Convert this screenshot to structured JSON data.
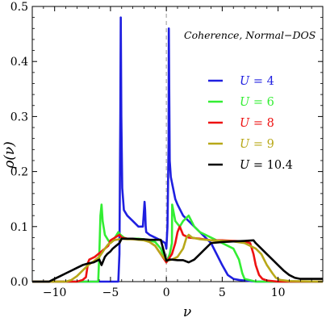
{
  "chart_data": {
    "type": "line",
    "title": "",
    "annotation": "Coherence, Normal−DOS",
    "xlabel": "ν",
    "ylabel": "ρ(ν)",
    "xlim": [
      -12,
      14
    ],
    "ylim": [
      0,
      0.5
    ],
    "x_ticks": [
      -10,
      -5,
      0,
      5,
      10
    ],
    "x_tick_labels": [
      "−10",
      "−5",
      "0",
      "5",
      "10"
    ],
    "y_ticks": [
      0.0,
      0.1,
      0.2,
      0.3,
      0.4,
      0.5
    ],
    "y_tick_labels": [
      "0.0",
      "0.1",
      "0.2",
      "0.3",
      "0.4",
      "0.5"
    ],
    "reference_line": {
      "x": 0,
      "style": "dashed",
      "color": "#aaaaaa"
    },
    "grid": false,
    "legend_position": "right",
    "series": [
      {
        "name": "U =4",
        "color": "#1f1fe0",
        "x": [
          -12,
          -4.3,
          -4.2,
          -4.12,
          -4.08,
          -4.03,
          -3.95,
          -3.8,
          -3.5,
          -3,
          -2.5,
          -2.1,
          -2.0,
          -1.95,
          -1.9,
          -1.85,
          -1.8,
          -1.5,
          -1,
          -0.5,
          -0.1,
          0,
          0.1,
          0.2,
          0.22,
          0.3,
          0.4,
          0.6,
          0.8,
          1,
          1.5,
          2,
          2.5,
          3,
          3.5,
          4,
          4.5,
          5,
          5.5,
          6,
          6.5,
          7,
          8,
          14
        ],
        "y": [
          0,
          0,
          0.05,
          0.3,
          0.48,
          0.3,
          0.17,
          0.13,
          0.12,
          0.11,
          0.1,
          0.1,
          0.13,
          0.145,
          0.13,
          0.1,
          0.09,
          0.085,
          0.08,
          0.075,
          0.07,
          0.06,
          0.1,
          0.25,
          0.46,
          0.22,
          0.19,
          0.17,
          0.15,
          0.14,
          0.12,
          0.11,
          0.1,
          0.09,
          0.08,
          0.07,
          0.05,
          0.03,
          0.012,
          0.005,
          0.003,
          0.002,
          0,
          0
        ]
      },
      {
        "name": "U =6",
        "color": "#33ee33",
        "x": [
          -12,
          -6.1,
          -6.0,
          -5.9,
          -5.8,
          -5.7,
          -5.5,
          -5.2,
          -5.0,
          -4.8,
          -4.6,
          -4.3,
          -4.1,
          -3.8,
          -3.5,
          -3,
          -2.5,
          -2,
          -1.5,
          -1,
          -0.5,
          -0.2,
          0,
          0.3,
          0.5,
          0.52,
          0.8,
          1.2,
          1.5,
          2,
          2.5,
          3,
          4,
          4.5,
          5,
          5.5,
          6,
          6.5,
          6.8,
          7,
          8,
          14
        ],
        "y": [
          0,
          0,
          0.05,
          0.12,
          0.14,
          0.11,
          0.085,
          0.075,
          0.07,
          0.075,
          0.08,
          0.09,
          0.085,
          0.08,
          0.078,
          0.078,
          0.078,
          0.077,
          0.075,
          0.072,
          0.06,
          0.045,
          0.035,
          0.05,
          0.07,
          0.14,
          0.11,
          0.1,
          0.11,
          0.12,
          0.1,
          0.09,
          0.08,
          0.075,
          0.07,
          0.065,
          0.06,
          0.04,
          0.015,
          0.005,
          0,
          0
        ]
      },
      {
        "name": "U =8",
        "color": "#ee1111",
        "x": [
          -12,
          -8.0,
          -7.5,
          -7.2,
          -7.0,
          -6.9,
          -6.7,
          -6.4,
          -6.1,
          -5.8,
          -5.5,
          -5.2,
          -5.0,
          -4.6,
          -4.2,
          -4.0,
          -3.5,
          -3,
          -2.5,
          -2,
          -1.5,
          -1,
          -0.5,
          0,
          0.5,
          0.8,
          1,
          1.2,
          1.5,
          2,
          3,
          4,
          5,
          6,
          7,
          7.5,
          7.8,
          8.0,
          8.3,
          8.6,
          9,
          10,
          14
        ],
        "y": [
          0,
          0,
          0.003,
          0.008,
          0.035,
          0.04,
          0.042,
          0.045,
          0.05,
          0.055,
          0.06,
          0.065,
          0.075,
          0.08,
          0.085,
          0.08,
          0.078,
          0.077,
          0.077,
          0.076,
          0.072,
          0.065,
          0.05,
          0.035,
          0.05,
          0.07,
          0.09,
          0.1,
          0.085,
          0.08,
          0.078,
          0.075,
          0.075,
          0.074,
          0.073,
          0.07,
          0.05,
          0.03,
          0.012,
          0.005,
          0.002,
          0,
          0
        ]
      },
      {
        "name": "U =9",
        "color": "#b8a818",
        "x": [
          -12,
          -9.0,
          -8.5,
          -8.0,
          -7.5,
          -7.0,
          -6.5,
          -6.0,
          -5.5,
          -5.2,
          -5.0,
          -4.7,
          -4.5,
          -4.2,
          -4.0,
          -3.5,
          -3,
          -2.5,
          -2,
          -1.5,
          -1,
          -0.5,
          0,
          0.5,
          1,
          1.5,
          1.8,
          2,
          2.3,
          3,
          4,
          5,
          6,
          7,
          8,
          8.5,
          9,
          9.5,
          9.8,
          10.2,
          11,
          14
        ],
        "y": [
          0,
          0,
          0.003,
          0.01,
          0.02,
          0.03,
          0.037,
          0.045,
          0.06,
          0.068,
          0.07,
          0.075,
          0.076,
          0.077,
          0.078,
          0.077,
          0.077,
          0.076,
          0.075,
          0.072,
          0.065,
          0.05,
          0.038,
          0.04,
          0.045,
          0.06,
          0.08,
          0.085,
          0.08,
          0.077,
          0.075,
          0.074,
          0.073,
          0.07,
          0.06,
          0.05,
          0.03,
          0.015,
          0.007,
          0.003,
          0.001,
          0
        ]
      },
      {
        "name": "U =10.4",
        "color": "#000000",
        "x": [
          -12,
          -10.5,
          -10.0,
          -9.5,
          -9.0,
          -8.5,
          -8.0,
          -7.5,
          -7.0,
          -6.5,
          -6.0,
          -5.8,
          -5.5,
          -5.3,
          -5.0,
          -4.8,
          -4.5,
          -4.2,
          -4.0,
          -3.5,
          -3,
          -2.5,
          -2,
          -1.5,
          -1,
          -0.5,
          0,
          0.3,
          0.5,
          1,
          1.5,
          2,
          2.5,
          3,
          3.5,
          4,
          5,
          6,
          7,
          7.8,
          8.0,
          8.5,
          9,
          9.5,
          10,
          10.5,
          11,
          11.5,
          12,
          14
        ],
        "y": [
          0,
          0,
          0.005,
          0.01,
          0.015,
          0.02,
          0.025,
          0.03,
          0.033,
          0.035,
          0.04,
          0.03,
          0.045,
          0.05,
          0.055,
          0.06,
          0.065,
          0.07,
          0.078,
          0.078,
          0.078,
          0.077,
          0.077,
          0.076,
          0.076,
          0.076,
          0.038,
          0.04,
          0.04,
          0.039,
          0.039,
          0.035,
          0.04,
          0.05,
          0.06,
          0.07,
          0.072,
          0.073,
          0.074,
          0.075,
          0.07,
          0.06,
          0.05,
          0.04,
          0.03,
          0.02,
          0.012,
          0.007,
          0.005,
          0.005
        ]
      }
    ]
  }
}
